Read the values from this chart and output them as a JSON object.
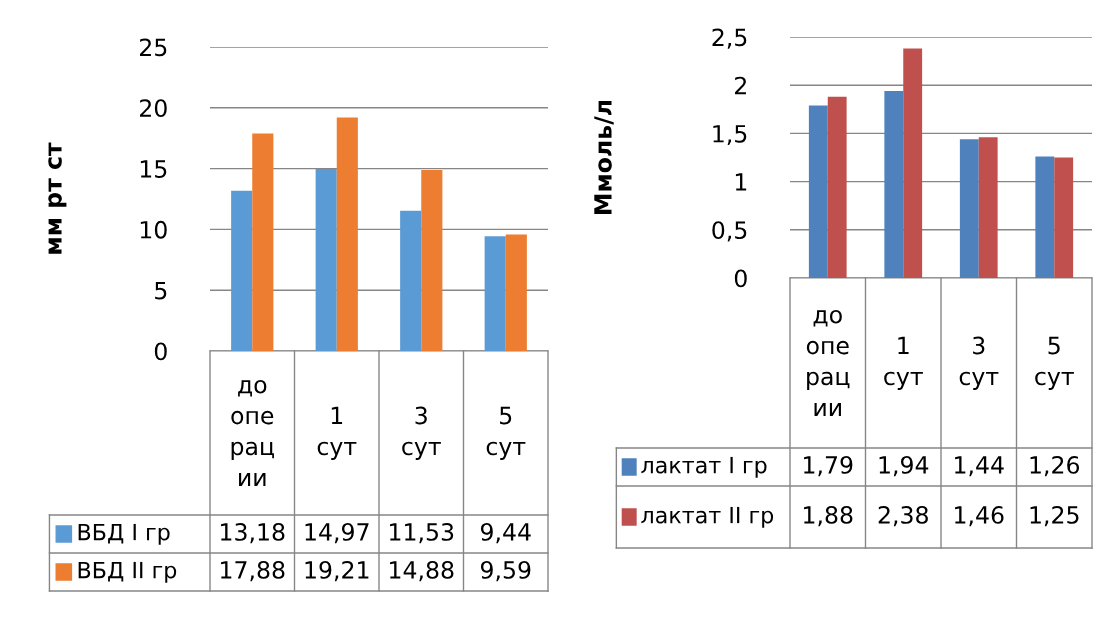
{
  "chart_data": [
    {
      "type": "bar",
      "categories": [
        "до операции",
        "1 сут",
        "3 сут",
        "5 сут"
      ],
      "ylabel": "мм рт ст",
      "ylim": [
        0,
        25
      ],
      "yticks": [
        0,
        5,
        10,
        15,
        20,
        25
      ],
      "grid": "y",
      "legend": "bottom",
      "series": [
        {
          "name": "ВБД I гр",
          "color": "#5b9bd5",
          "values": [
            13.18,
            14.97,
            11.53,
            9.44
          ],
          "value_labels": [
            "13,18",
            "14,97",
            "11,53",
            "9,44"
          ]
        },
        {
          "name": "ВБД II гр",
          "color": "#ed7d31",
          "values": [
            17.88,
            19.21,
            14.88,
            9.59
          ],
          "value_labels": [
            "17,88",
            "19,21",
            "14,88",
            "9,59"
          ]
        }
      ]
    },
    {
      "type": "bar",
      "categories": [
        "до операции",
        "1 сут",
        "3 сут",
        "5 сут"
      ],
      "ylabel": "Ммоль/л",
      "ylim": [
        0,
        2.5
      ],
      "yticks": [
        0,
        {
          "value": 0.5,
          "label": "0,5"
        },
        1,
        {
          "value": 1.5,
          "label": "1,5"
        },
        2,
        {
          "value": 2.5,
          "label": "2,5"
        }
      ],
      "grid": "y",
      "legend": "bottom",
      "series": [
        {
          "name": "лактат I гр",
          "color": "#4f81bd",
          "values": [
            1.79,
            1.94,
            1.44,
            1.26
          ],
          "value_labels": [
            "1,79",
            "1,94",
            "1,44",
            "1,26"
          ]
        },
        {
          "name": "лактат II гр",
          "color": "#c0504d",
          "values": [
            1.88,
            2.38,
            1.46,
            1.25
          ],
          "value_labels": [
            "1,88",
            "2,38",
            "1,46",
            "1,25"
          ]
        }
      ]
    }
  ]
}
